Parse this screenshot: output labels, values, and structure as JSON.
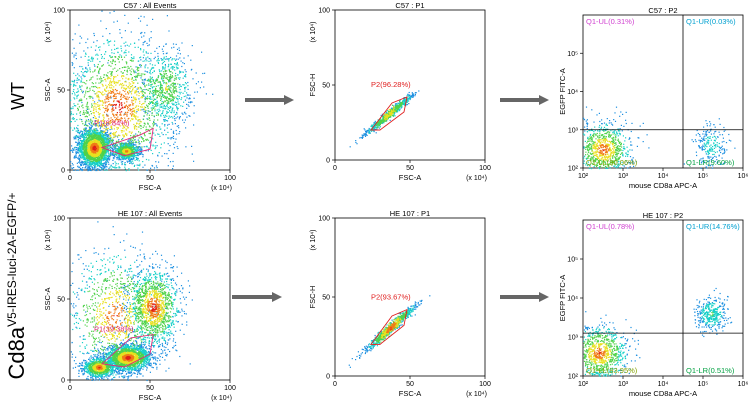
{
  "row_labels": {
    "wt": "WT",
    "cd8a_main": "Cd8a",
    "cd8a_super": "V5-IRES-luci-2A-EGFP/+"
  },
  "colors": {
    "arrow": "#666666",
    "gate": "#e0287a",
    "gate_p2": "#e02020",
    "ul": "#d040d0",
    "ur": "#00a0d0",
    "ll": "#80a000",
    "lr": "#00a040",
    "axis": "#000000",
    "quad_line": "#000000"
  },
  "chart_data": [
    {
      "id": "wt-p1",
      "type": "scatter",
      "title": "C57 : All Events",
      "xlabel": "FSC-A",
      "ylabel": "SSC-A",
      "xlim": [
        0,
        100
      ],
      "ylim": [
        0,
        100
      ],
      "xticks": [
        "0",
        "50",
        "100"
      ],
      "yticks": [
        "0",
        "50",
        "100"
      ],
      "x_mult": "(x 10⁴)",
      "y_mult": "(x 10⁴)",
      "gate": {
        "label": "P1(8.84%)",
        "shape": [
          [
            20,
            14
          ],
          [
            44,
            22
          ],
          [
            52,
            26
          ],
          [
            50,
            13
          ],
          [
            34,
            9
          ]
        ]
      },
      "populations": [
        {
          "cx": 15,
          "cy": 14,
          "sx": 5,
          "sy": 6,
          "n": 2200
        },
        {
          "cx": 35,
          "cy": 12,
          "sx": 4,
          "sy": 2.5,
          "n": 800
        },
        {
          "cx": 30,
          "cy": 40,
          "sx": 18,
          "sy": 22,
          "n": 1800
        },
        {
          "cx": 60,
          "cy": 52,
          "sx": 8,
          "sy": 12,
          "n": 600
        }
      ]
    },
    {
      "id": "wt-p2",
      "type": "scatter",
      "title": "C57 : P1",
      "xlabel": "FSC-A",
      "ylabel": "FSC-H",
      "xlim": [
        0,
        100
      ],
      "ylim": [
        0,
        100
      ],
      "xticks": [
        "0",
        "50",
        "100"
      ],
      "yticks": [
        "0",
        "50",
        "100"
      ],
      "x_mult": "(x 10⁴)",
      "y_mult": "(x 10⁴)",
      "gate": {
        "label": "P2(96.28%)",
        "shape": [
          [
            24,
            20
          ],
          [
            38,
            38
          ],
          [
            48,
            42
          ],
          [
            46,
            32
          ],
          [
            30,
            20
          ]
        ]
      },
      "populations": [
        {
          "cx": 36,
          "cy": 31,
          "sx": 5,
          "sy": 4,
          "n": 700,
          "diag": true
        }
      ]
    },
    {
      "id": "wt-p3",
      "type": "scatter",
      "title": "C57 : P2",
      "xlabel": "mouse CD8a APC-A",
      "ylabel": "EGFP FITC-A",
      "log": true,
      "xlim": [
        2,
        6
      ],
      "ylim": [
        2,
        6
      ],
      "xticks": [
        "10²",
        "10³",
        "10⁴",
        "10⁵",
        "10⁶"
      ],
      "yticks": [
        "10²",
        "10³",
        "10⁴",
        "10⁵"
      ],
      "quad": {
        "x": 4.5,
        "y": 3.0
      },
      "quadrants": {
        "ul": "Q1-UL(0.31%)",
        "ur": "Q1-UR(0.03%)",
        "ll": "Q1-LL(90.06%)",
        "lr": "Q1-LR(9.60%)"
      },
      "populations": [
        {
          "cx": 2.5,
          "cy": 2.5,
          "sx": 0.35,
          "sy": 0.35,
          "n": 900
        },
        {
          "cx": 5.2,
          "cy": 2.6,
          "sx": 0.22,
          "sy": 0.3,
          "n": 220
        }
      ]
    },
    {
      "id": "cd-p1",
      "type": "scatter",
      "title": "HE 107 : All Events",
      "xlabel": "FSC-A",
      "ylabel": "SSC-A",
      "xlim": [
        0,
        100
      ],
      "ylim": [
        0,
        100
      ],
      "xticks": [
        "0",
        "50",
        "100"
      ],
      "yticks": [
        "0",
        "50",
        "100"
      ],
      "x_mult": "(x 10⁴)",
      "y_mult": "(x 10⁴)",
      "gate": {
        "label": "P1(39.38%)",
        "shape": [
          [
            20,
            10
          ],
          [
            38,
            26
          ],
          [
            52,
            28
          ],
          [
            50,
            16
          ],
          [
            34,
            8
          ]
        ]
      },
      "populations": [
        {
          "cx": 36,
          "cy": 14,
          "sx": 7,
          "sy": 4,
          "n": 2000
        },
        {
          "cx": 18,
          "cy": 8,
          "sx": 5,
          "sy": 3,
          "n": 900
        },
        {
          "cx": 52,
          "cy": 45,
          "sx": 8,
          "sy": 12,
          "n": 1300
        },
        {
          "cx": 28,
          "cy": 40,
          "sx": 15,
          "sy": 20,
          "n": 900
        }
      ]
    },
    {
      "id": "cd-p2",
      "type": "scatter",
      "title": "HE 107 : P1",
      "xlabel": "FSC-A",
      "ylabel": "FSC-H",
      "xlim": [
        0,
        100
      ],
      "ylim": [
        0,
        100
      ],
      "xticks": [
        "0",
        "50",
        "100"
      ],
      "yticks": [
        "0",
        "50",
        "100"
      ],
      "x_mult": "(x 10⁴)",
      "y_mult": "(x 10⁴)",
      "gate": {
        "label": "P2(93.67%)",
        "shape": [
          [
            24,
            20
          ],
          [
            38,
            38
          ],
          [
            48,
            42
          ],
          [
            46,
            32
          ],
          [
            30,
            20
          ]
        ]
      },
      "populations": [
        {
          "cx": 37,
          "cy": 31,
          "sx": 5,
          "sy": 4.5,
          "n": 900,
          "diag": true
        }
      ]
    },
    {
      "id": "cd-p3",
      "type": "scatter",
      "title": "HE 107 : P2",
      "xlabel": "mouse CD8a APC-A",
      "ylabel": "EGFP FITC-A",
      "log": true,
      "xlim": [
        2,
        6
      ],
      "ylim": [
        2,
        6
      ],
      "xticks": [
        "10²",
        "10³",
        "10⁴",
        "10⁵",
        "10⁶"
      ],
      "yticks": [
        "10²",
        "10³",
        "10⁴",
        "10⁵"
      ],
      "quad": {
        "x": 4.5,
        "y": 3.1
      },
      "quadrants": {
        "ul": "Q1-UL(0.78%)",
        "ur": "Q1-UR(14.76%)",
        "ll": "Q1-LL(83.95%)",
        "lr": "Q1-LR(0.51%)"
      },
      "populations": [
        {
          "cx": 2.4,
          "cy": 2.6,
          "sx": 0.35,
          "sy": 0.35,
          "n": 900
        },
        {
          "cx": 5.2,
          "cy": 3.6,
          "sx": 0.2,
          "sy": 0.22,
          "n": 350
        }
      ]
    }
  ]
}
